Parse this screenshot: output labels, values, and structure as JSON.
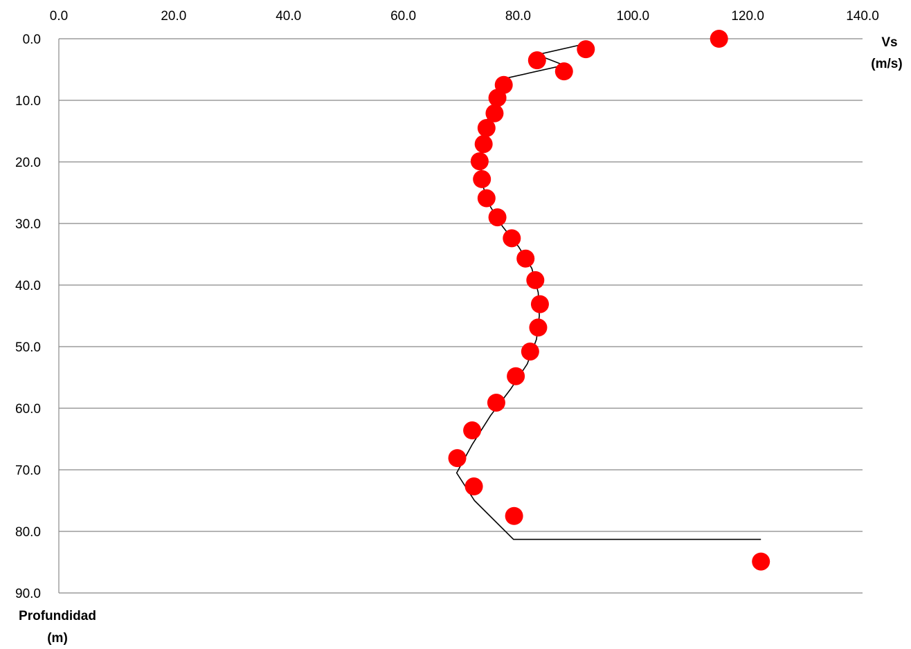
{
  "chart_data": {
    "type": "scatter",
    "xlabel": [
      "Vs",
      "(m/s)"
    ],
    "ylabel": [
      "Profundidad",
      "(m)"
    ],
    "xlim": [
      0,
      140
    ],
    "ylim": [
      0,
      90
    ],
    "y_inverted": true,
    "x_axis_position": "top",
    "x_ticks": [
      "0.0",
      "20.0",
      "40.0",
      "60.0",
      "80.0",
      "100.0",
      "120.0",
      "140.0"
    ],
    "y_ticks": [
      "0.0",
      "10.0",
      "20.0",
      "30.0",
      "40.0",
      "50.0",
      "60.0",
      "70.0",
      "80.0",
      "90.0"
    ],
    "grid": "horizontal",
    "colors": {
      "points": "#ff0000",
      "line": "#000000",
      "grid": "#888888"
    },
    "series": [
      {
        "type": "scatter",
        "x": [
          115.0,
          91.8,
          83.3,
          88.0,
          77.5,
          76.4,
          75.9,
          74.5,
          74.0,
          73.3,
          73.7,
          74.5,
          76.4,
          78.9,
          81.3,
          83.0,
          83.8,
          83.5,
          82.1,
          79.6,
          76.2,
          72.0,
          69.4,
          72.3,
          79.3,
          122.3
        ],
        "y": [
          0.0,
          1.7,
          3.5,
          5.3,
          7.5,
          9.6,
          12.1,
          14.5,
          17.1,
          19.9,
          22.8,
          25.9,
          29.0,
          32.4,
          35.7,
          39.2,
          43.1,
          46.9,
          50.8,
          54.8,
          59.1,
          63.6,
          68.1,
          72.7,
          77.5,
          84.9
        ]
      },
      {
        "type": "line",
        "x": [
          91.8,
          83.3,
          88.0,
          77.0,
          76.2,
          75.3,
          74.4,
          73.8,
          73.5,
          73.6,
          74.0,
          75.2,
          77.3,
          80.1,
          82.4,
          83.5,
          83.7,
          83.2,
          81.6,
          78.7,
          75.2,
          72.0,
          69.3,
          72.4,
          79.2,
          122.3
        ],
        "y": [
          0.8,
          2.6,
          4.3,
          6.6,
          9.0,
          11.5,
          13.8,
          16.3,
          18.8,
          21.4,
          24.3,
          27.3,
          30.5,
          33.8,
          37.3,
          41.2,
          45.0,
          48.8,
          52.8,
          56.9,
          61.2,
          65.9,
          70.5,
          75.0,
          81.3,
          81.3
        ]
      }
    ]
  }
}
